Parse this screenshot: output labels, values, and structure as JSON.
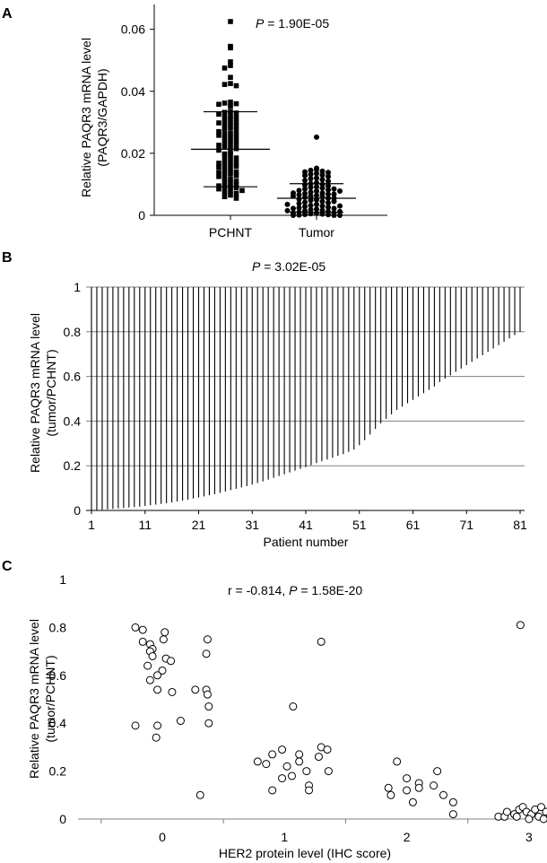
{
  "chart_data": [
    {
      "panel_letter": "A",
      "type": "scatter",
      "annotation": {
        "prefix": "P",
        "text": " = 1.90E-05"
      },
      "ylabel": "Relative PAQR3 mRNA level",
      "ylabel2": "(PAQR3/GAPDH)",
      "ylim": [
        0,
        0.068
      ],
      "yticks": [
        0,
        0.02,
        0.04,
        0.06
      ],
      "ytick_labels": [
        "0",
        "0.02",
        "0.04",
        "0.06"
      ],
      "categories": [
        "PCHNT",
        "Tumor"
      ],
      "series": [
        {
          "marker": "square",
          "mean": 0.0213,
          "sd_upper": 0.0334,
          "sd_lower": 0.0092,
          "values": [
            0.0625,
            0.0545,
            0.054,
            0.0495,
            0.0483,
            0.0475,
            0.0445,
            0.0425,
            0.0422,
            0.0418,
            0.0365,
            0.0362,
            0.036,
            0.0358,
            0.0352,
            0.0335,
            0.0332,
            0.033,
            0.0326,
            0.032,
            0.0318,
            0.0315,
            0.031,
            0.0305,
            0.03,
            0.0298,
            0.0296,
            0.029,
            0.0288,
            0.0282,
            0.0278,
            0.0275,
            0.027,
            0.0265,
            0.0262,
            0.026,
            0.0258,
            0.0252,
            0.0248,
            0.0245,
            0.0238,
            0.0235,
            0.023,
            0.0226,
            0.0222,
            0.022,
            0.0215,
            0.021,
            0.0205,
            0.0198,
            0.0195,
            0.019,
            0.0185,
            0.018,
            0.0175,
            0.017,
            0.0168,
            0.0165,
            0.016,
            0.0158,
            0.0155,
            0.015,
            0.0145,
            0.014,
            0.0138,
            0.0135,
            0.013,
            0.0128,
            0.0125,
            0.0118,
            0.0115,
            0.011,
            0.0105,
            0.0102,
            0.0098,
            0.0095,
            0.0092,
            0.009,
            0.0088,
            0.0085,
            0.008,
            0.0078,
            0.0075,
            0.007,
            0.0065,
            0.006,
            0.0055
          ]
        },
        {
          "marker": "circle",
          "mean": 0.0055,
          "sd_upper": 0.0102,
          "sd_lower": 0.001,
          "values": [
            0.0252,
            0.0152,
            0.0148,
            0.0145,
            0.0142,
            0.014,
            0.0138,
            0.0135,
            0.0132,
            0.013,
            0.0128,
            0.0125,
            0.012,
            0.0118,
            0.0115,
            0.0112,
            0.011,
            0.0105,
            0.0102,
            0.01,
            0.0098,
            0.0095,
            0.0092,
            0.009,
            0.0088,
            0.0085,
            0.0082,
            0.008,
            0.0078,
            0.0075,
            0.0072,
            0.007,
            0.0068,
            0.0066,
            0.0064,
            0.0062,
            0.006,
            0.0058,
            0.0055,
            0.0052,
            0.005,
            0.0048,
            0.0045,
            0.0042,
            0.004,
            0.0038,
            0.0035,
            0.0032,
            0.003,
            0.0028,
            0.0026,
            0.0024,
            0.0022,
            0.002,
            0.0018,
            0.0016,
            0.0014,
            0.0012,
            0.001,
            0.0008,
            0.0006,
            0.0005,
            0.0004,
            0.0003,
            0.0002,
            0.0001,
            0.0,
            0.0,
            0.0,
            0.0008,
            0.0012,
            0.0015,
            0.0022,
            0.003,
            0.0035,
            0.0045,
            0.0055,
            0.0062,
            0.0068,
            0.0072,
            0.0078,
            0.0085
          ]
        }
      ]
    },
    {
      "panel_letter": "B",
      "type": "bar",
      "annotation": {
        "prefix": "P",
        "text": " = 3.02E-05"
      },
      "ylabel": "Relative PAQR3 mRNA level",
      "ylabel2": "(tumor/PCHNT)",
      "xlabel": "Patient number",
      "ylim": [
        0,
        1
      ],
      "yticks": [
        0,
        0.2,
        0.4,
        0.6,
        0.8,
        1
      ],
      "ytick_labels": [
        "0",
        "0.2",
        "0.4",
        "0.6",
        "0.8",
        "1"
      ],
      "xticks": [
        1,
        11,
        21,
        31,
        41,
        51,
        61,
        71,
        81
      ],
      "xtick_labels": [
        "1",
        "11",
        "21",
        "31",
        "41",
        "51",
        "61",
        "71",
        "81"
      ],
      "grid": true,
      "values": [
        0.0,
        0.001,
        0.003,
        0.005,
        0.007,
        0.009,
        0.011,
        0.013,
        0.015,
        0.017,
        0.02,
        0.023,
        0.026,
        0.029,
        0.032,
        0.036,
        0.04,
        0.044,
        0.048,
        0.053,
        0.058,
        0.063,
        0.068,
        0.073,
        0.079,
        0.085,
        0.091,
        0.097,
        0.103,
        0.109,
        0.116,
        0.123,
        0.13,
        0.138,
        0.146,
        0.154,
        0.162,
        0.17,
        0.178,
        0.186,
        0.194,
        0.203,
        0.212,
        0.22,
        0.228,
        0.236,
        0.244,
        0.252,
        0.262,
        0.272,
        0.292,
        0.315,
        0.34,
        0.365,
        0.39,
        0.41,
        0.43,
        0.45,
        0.465,
        0.48,
        0.495,
        0.51,
        0.525,
        0.54,
        0.555,
        0.575,
        0.59,
        0.605,
        0.62,
        0.635,
        0.65,
        0.665,
        0.68,
        0.695,
        0.71,
        0.725,
        0.74,
        0.755,
        0.77,
        0.785,
        0.8
      ]
    },
    {
      "panel_letter": "C",
      "type": "scatter",
      "annotation": {
        "prefix1": "r = -0.814, ",
        "prefix": "P",
        "text": " = 1.58E-20"
      },
      "ylabel": "Relative PAQR3 mRNA level",
      "ylabel2": "(tumor/PCHNT)",
      "xlabel": "HER2 protein level (IHC score)",
      "ylim": [
        0,
        1
      ],
      "xlim": [
        -0.62,
        3.62
      ],
      "yticks": [
        0,
        0.2,
        0.4,
        0.6,
        0.8,
        1
      ],
      "ytick_labels": [
        "0",
        "0.2",
        "0.4",
        "0.6",
        "0.8",
        "1"
      ],
      "xticks": [
        0,
        1,
        2,
        3
      ],
      "xtick_labels": [
        "0",
        "1",
        "2",
        "3"
      ],
      "points": [
        {
          "x": -0.22,
          "y": 0.8
        },
        {
          "x": -0.16,
          "y": 0.79
        },
        {
          "x": 0.02,
          "y": 0.78
        },
        {
          "x": -0.16,
          "y": 0.74
        },
        {
          "x": 0.01,
          "y": 0.75
        },
        {
          "x": 0.37,
          "y": 0.75
        },
        {
          "x": -0.1,
          "y": 0.73
        },
        {
          "x": -0.08,
          "y": 0.71
        },
        {
          "x": -0.1,
          "y": 0.7
        },
        {
          "x": -0.08,
          "y": 0.68
        },
        {
          "x": 0.03,
          "y": 0.67
        },
        {
          "x": 0.07,
          "y": 0.66
        },
        {
          "x": 0.36,
          "y": 0.69
        },
        {
          "x": -0.12,
          "y": 0.64
        },
        {
          "x": 0.0,
          "y": 0.62
        },
        {
          "x": -0.04,
          "y": 0.6
        },
        {
          "x": -0.1,
          "y": 0.58
        },
        {
          "x": -0.04,
          "y": 0.54
        },
        {
          "x": 0.08,
          "y": 0.53
        },
        {
          "x": 0.27,
          "y": 0.54
        },
        {
          "x": 0.36,
          "y": 0.54
        },
        {
          "x": 0.37,
          "y": 0.52
        },
        {
          "x": 0.38,
          "y": 0.47
        },
        {
          "x": 0.38,
          "y": 0.4
        },
        {
          "x": 0.15,
          "y": 0.41
        },
        {
          "x": -0.22,
          "y": 0.39
        },
        {
          "x": -0.04,
          "y": 0.39
        },
        {
          "x": -0.05,
          "y": 0.34
        },
        {
          "x": 0.31,
          "y": 0.1
        },
        {
          "x": 1.3,
          "y": 0.74
        },
        {
          "x": 1.07,
          "y": 0.47
        },
        {
          "x": 0.78,
          "y": 0.24
        },
        {
          "x": 0.85,
          "y": 0.23
        },
        {
          "x": 0.9,
          "y": 0.27
        },
        {
          "x": 0.98,
          "y": 0.29
        },
        {
          "x": 1.12,
          "y": 0.27
        },
        {
          "x": 1.3,
          "y": 0.3
        },
        {
          "x": 1.35,
          "y": 0.29
        },
        {
          "x": 1.28,
          "y": 0.26
        },
        {
          "x": 1.12,
          "y": 0.24
        },
        {
          "x": 1.02,
          "y": 0.22
        },
        {
          "x": 1.18,
          "y": 0.2
        },
        {
          "x": 1.36,
          "y": 0.2
        },
        {
          "x": 0.98,
          "y": 0.17
        },
        {
          "x": 1.06,
          "y": 0.18
        },
        {
          "x": 1.2,
          "y": 0.14
        },
        {
          "x": 0.9,
          "y": 0.12
        },
        {
          "x": 1.2,
          "y": 0.12
        },
        {
          "x": 1.92,
          "y": 0.24
        },
        {
          "x": 1.85,
          "y": 0.13
        },
        {
          "x": 1.87,
          "y": 0.1
        },
        {
          "x": 2.0,
          "y": 0.17
        },
        {
          "x": 2.1,
          "y": 0.15
        },
        {
          "x": 2.1,
          "y": 0.13
        },
        {
          "x": 2.25,
          "y": 0.2
        },
        {
          "x": 2.22,
          "y": 0.14
        },
        {
          "x": 2.3,
          "y": 0.1
        },
        {
          "x": 2.38,
          "y": 0.07
        },
        {
          "x": 2.38,
          "y": 0.02
        },
        {
          "x": 2.05,
          "y": 0.07
        },
        {
          "x": 2.0,
          "y": 0.12
        },
        {
          "x": 2.93,
          "y": 0.81
        },
        {
          "x": 3.25,
          "y": 0.1
        },
        {
          "x": 2.75,
          "y": 0.01
        },
        {
          "x": 2.8,
          "y": 0.01
        },
        {
          "x": 2.82,
          "y": 0.03
        },
        {
          "x": 2.88,
          "y": 0.02
        },
        {
          "x": 2.92,
          "y": 0.04
        },
        {
          "x": 2.95,
          "y": 0.05
        },
        {
          "x": 2.98,
          "y": 0.03
        },
        {
          "x": 3.02,
          "y": 0.02
        },
        {
          "x": 3.05,
          "y": 0.04
        },
        {
          "x": 3.08,
          "y": 0.01
        },
        {
          "x": 3.1,
          "y": 0.05
        },
        {
          "x": 3.14,
          "y": 0.03
        },
        {
          "x": 3.17,
          "y": 0.01
        },
        {
          "x": 3.2,
          "y": 0.04
        },
        {
          "x": 3.23,
          "y": 0.02
        },
        {
          "x": 3.3,
          "y": 0.02
        },
        {
          "x": 3.32,
          "y": 0.03
        },
        {
          "x": 3.35,
          "y": 0.03
        },
        {
          "x": 2.9,
          "y": 0.01
        },
        {
          "x": 3.0,
          "y": 0.0
        },
        {
          "x": 3.12,
          "y": 0.0
        }
      ]
    }
  ]
}
